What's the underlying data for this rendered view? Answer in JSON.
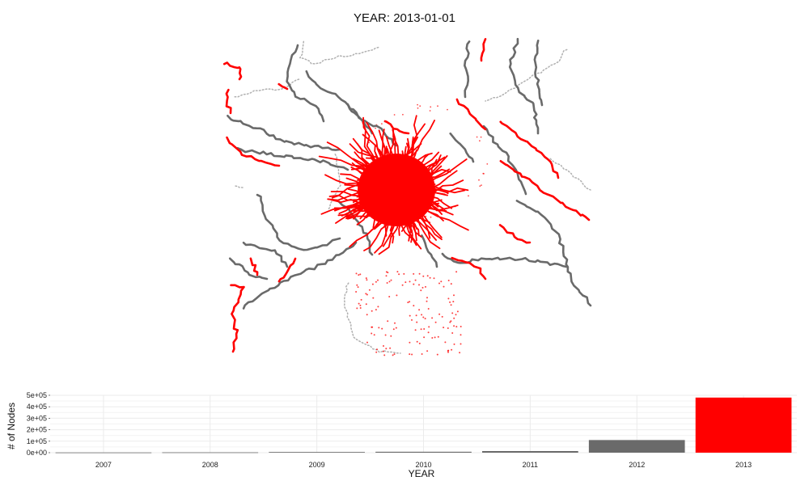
{
  "title": "YEAR: 2013-01-01",
  "colors": {
    "highlight": "#ff0000",
    "network": "#6a6a6a",
    "faint": "#b0b0b0",
    "grid": "#ebebeb"
  },
  "chart_data": [
    {
      "type": "scatter",
      "title": "YEAR: 2013-01-01",
      "description_series": [
        {
          "name": "",
          "color": "#ff0000"
        },
        {
          "name": "",
          "color": "#6a6a6a"
        },
        {
          "name": "",
          "color": "#b0b0b0"
        }
      ],
      "xlabel": "",
      "ylabel": "",
      "grid": false
    },
    {
      "type": "bar",
      "categories": [
        "2007",
        "2008",
        "2009",
        "2010",
        "2011",
        "2012",
        "2013"
      ],
      "values": [
        2000,
        3000,
        6000,
        8000,
        14000,
        110000,
        480000
      ],
      "colors": [
        "#6a6a6a",
        "#6a6a6a",
        "#6a6a6a",
        "#6a6a6a",
        "#6a6a6a",
        "#6a6a6a",
        "#ff0000"
      ],
      "xlabel": "YEAR",
      "ylabel": "# of Nodes",
      "ylim": [
        0,
        500000
      ],
      "yticks": [
        0,
        100000,
        200000,
        300000,
        400000,
        500000
      ],
      "ytick_labels": [
        "0e+00",
        "1e+05",
        "2e+05",
        "3e+05",
        "4e+05",
        "5e+05"
      ],
      "grid": true
    }
  ]
}
